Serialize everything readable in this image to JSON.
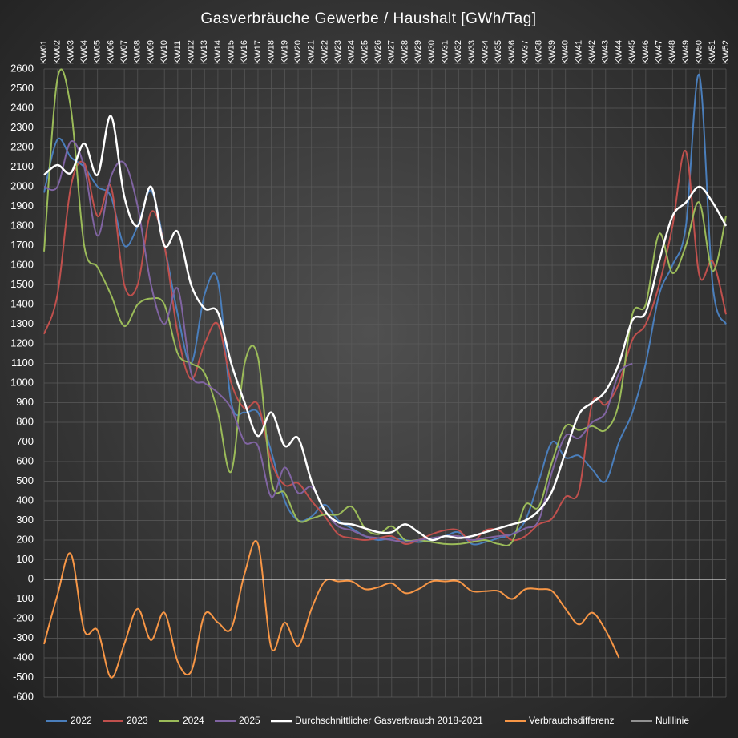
{
  "chart_data": {
    "type": "line",
    "title": "Gasverbräuche Gewerbe / Haushalt [GWh/Tag]",
    "categories": [
      "KW01",
      "KW02",
      "KW03",
      "KW04",
      "KW05",
      "KW06",
      "KW07",
      "KW08",
      "KW09",
      "KW10",
      "KW11",
      "KW12",
      "KW13",
      "KW14",
      "KW15",
      "KW16",
      "KW17",
      "KW18",
      "KW19",
      "KW20",
      "KW21",
      "KW22",
      "KW23",
      "KW24",
      "KW25",
      "KW26",
      "KW27",
      "KW28",
      "KW29",
      "KW30",
      "KW31",
      "KW32",
      "KW33",
      "KW34",
      "KW35",
      "KW36",
      "KW37",
      "KW38",
      "KW39",
      "KW40",
      "KW41",
      "KW42",
      "KW43",
      "KW44",
      "KW45",
      "KW46",
      "KW47",
      "KW48",
      "KW49",
      "KW50",
      "KW51",
      "KW52"
    ],
    "ylim": [
      -600,
      2600
    ],
    "yticks": [
      -600,
      -500,
      -400,
      -300,
      -200,
      -100,
      0,
      100,
      200,
      300,
      400,
      500,
      600,
      700,
      800,
      900,
      1000,
      1100,
      1200,
      1300,
      1400,
      1500,
      1600,
      1700,
      1800,
      1900,
      2000,
      2100,
      2200,
      2300,
      2400,
      2500,
      2600
    ],
    "grid": true,
    "smooth": true,
    "legend": "bottom",
    "series": [
      {
        "name": "2022",
        "color": "#4a7ebb",
        "values": [
          1970,
          2240,
          2150,
          2100,
          2000,
          1950,
          1700,
          1800,
          1980,
          1700,
          1350,
          1100,
          1450,
          1520,
          900,
          850,
          850,
          650,
          400,
          300,
          320,
          380,
          300,
          260,
          220,
          200,
          210,
          200,
          190,
          200,
          220,
          240,
          180,
          190,
          210,
          230,
          300,
          500,
          700,
          620,
          630,
          560,
          500,
          700,
          850,
          1100,
          1450,
          1600,
          1800,
          2570,
          1500,
          1300
        ]
      },
      {
        "name": "2023",
        "color": "#c0504d",
        "values": [
          1250,
          1450,
          2000,
          2120,
          1850,
          2000,
          1500,
          1500,
          1870,
          1700,
          1250,
          1020,
          1200,
          1300,
          1000,
          870,
          890,
          600,
          480,
          490,
          400,
          320,
          230,
          210,
          200,
          210,
          220,
          180,
          200,
          230,
          250,
          250,
          190,
          250,
          250,
          200,
          220,
          280,
          310,
          420,
          450,
          900,
          890,
          1000,
          1220,
          1300,
          1500,
          1800,
          2180,
          1550,
          1620,
          1350
        ]
      },
      {
        "name": "2024",
        "color": "#9bbb59",
        "values": [
          1670,
          2550,
          2400,
          1700,
          1590,
          1450,
          1290,
          1400,
          1430,
          1400,
          1150,
          1100,
          1050,
          850,
          550,
          1100,
          1130,
          500,
          440,
          300,
          310,
          330,
          330,
          370,
          260,
          230,
          270,
          200,
          200,
          190,
          180,
          180,
          190,
          200,
          180,
          190,
          380,
          370,
          600,
          780,
          760,
          780,
          760,
          900,
          1350,
          1400,
          1760,
          1560,
          1700,
          1920,
          1570,
          1850
        ]
      },
      {
        "name": "2025",
        "color": "#8064a2",
        "values": [
          2000,
          2000,
          2230,
          2100,
          1750,
          2050,
          2120,
          1900,
          1500,
          1300,
          1480,
          1050,
          1000,
          950,
          870,
          700,
          680,
          420,
          570,
          440,
          470,
          350,
          270,
          250,
          220,
          210,
          200,
          190,
          200,
          210,
          220,
          220,
          200,
          210,
          220,
          230,
          260,
          300,
          550,
          730,
          720,
          800,
          850,
          1050,
          1100,
          null,
          null,
          null,
          null,
          null,
          null,
          null
        ]
      },
      {
        "name": "Durchschnittlicher Gasverbrauch 2018-2021",
        "color": "#ffffff",
        "width": 2.5,
        "values": [
          2060,
          2110,
          2070,
          2220,
          2060,
          2360,
          1950,
          1800,
          2000,
          1700,
          1770,
          1500,
          1380,
          1360,
          1100,
          900,
          730,
          850,
          680,
          720,
          500,
          350,
          290,
          280,
          260,
          240,
          240,
          280,
          240,
          200,
          220,
          210,
          220,
          240,
          260,
          280,
          300,
          350,
          450,
          650,
          840,
          900,
          960,
          1100,
          1320,
          1360,
          1620,
          1850,
          1920,
          2000,
          1920,
          1800
        ]
      },
      {
        "name": "Verbrauchsdifferenz",
        "color": "#f79646",
        "values": [
          -330,
          -80,
          130,
          -260,
          -260,
          -500,
          -330,
          -150,
          -310,
          -170,
          -420,
          -470,
          -180,
          -220,
          -250,
          30,
          180,
          -350,
          -220,
          -340,
          -150,
          -10,
          -10,
          -10,
          -50,
          -40,
          -20,
          -70,
          -50,
          -10,
          -10,
          -10,
          -60,
          -60,
          -60,
          -100,
          -50,
          -50,
          -60,
          -150,
          -230,
          -170,
          -260,
          -400,
          null,
          null,
          null,
          null,
          null,
          null,
          null,
          null
        ]
      },
      {
        "name": "Nulllinie",
        "color": "#ffffff",
        "width": 1,
        "straight": true,
        "values": [
          0,
          0,
          0,
          0,
          0,
          0,
          0,
          0,
          0,
          0,
          0,
          0,
          0,
          0,
          0,
          0,
          0,
          0,
          0,
          0,
          0,
          0,
          0,
          0,
          0,
          0,
          0,
          0,
          0,
          0,
          0,
          0,
          0,
          0,
          0,
          0,
          0,
          0,
          0,
          0,
          0,
          0,
          0,
          0,
          0,
          0,
          0,
          0,
          0,
          0,
          0,
          0
        ]
      }
    ]
  }
}
